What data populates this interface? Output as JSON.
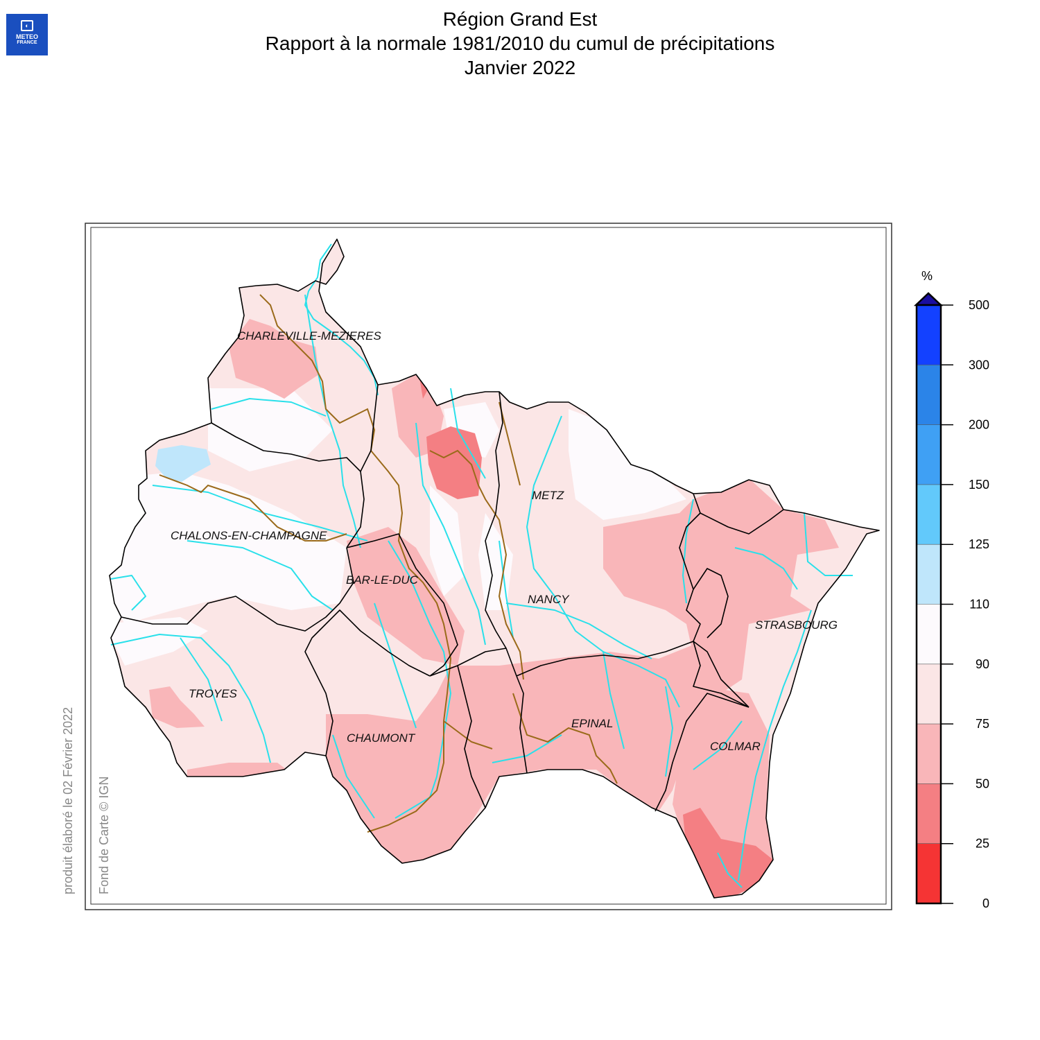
{
  "logo": {
    "line1": "METEO",
    "line2": "FRANCE",
    "brand_color": "#1a4fbf"
  },
  "title": {
    "line1": "Région Grand Est",
    "line2": "Rapport à la normale 1981/2010 du cumul de précipitations",
    "line3": "Janvier 2022"
  },
  "credits": {
    "produced": "produit élaboré le 02 Février 2022",
    "basemap": "Fond de Carte © IGN"
  },
  "cities": [
    {
      "id": "charleville",
      "name": "CHARLEVILLE-MEZIERES"
    },
    {
      "id": "metz",
      "name": "METZ"
    },
    {
      "id": "chalons",
      "name": "CHALONS-EN-CHAMPAGNE"
    },
    {
      "id": "barleduc",
      "name": "BAR-LE-DUC"
    },
    {
      "id": "nancy",
      "name": "NANCY"
    },
    {
      "id": "strasbourg",
      "name": "STRASBOURG"
    },
    {
      "id": "troyes",
      "name": "TROYES"
    },
    {
      "id": "epinal",
      "name": "EPINAL"
    },
    {
      "id": "chaumont",
      "name": "CHAUMONT"
    },
    {
      "id": "colmar",
      "name": "COLMAR"
    }
  ],
  "legend": {
    "unit": "%",
    "ticks": [
      "500",
      "300",
      "200",
      "150",
      "125",
      "110",
      "90",
      "75",
      "50",
      "25",
      "0"
    ],
    "classes": [
      {
        "range": "300-500",
        "color": "#1341ff"
      },
      {
        "range": "200-300",
        "color": "#2b84e8"
      },
      {
        "range": "150-200",
        "color": "#3fa0f4"
      },
      {
        "range": "125-150",
        "color": "#62c9fb"
      },
      {
        "range": "110-125",
        "color": "#bfe6fb"
      },
      {
        "range": "90-110",
        "color": "#fdfafd"
      },
      {
        "range": "75-90",
        "color": "#fbe6e6"
      },
      {
        "range": "50-75",
        "color": "#f9b6b9"
      },
      {
        "range": "25-50",
        "color": "#f47f83"
      },
      {
        "range": "0-25",
        "color": "#f53434"
      }
    ],
    "overflow_color": "#1a0ea0"
  },
  "colors": {
    "rivers": "#29e0ea",
    "department_borders": "#000000",
    "basin_borders": "#9a6a1a"
  }
}
